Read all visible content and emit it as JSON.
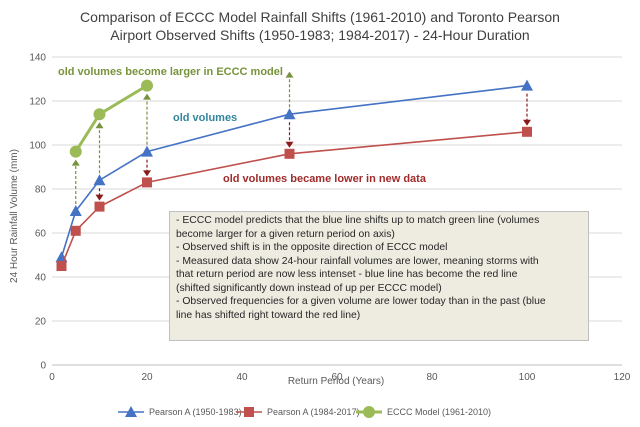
{
  "chart_data": {
    "type": "line",
    "title": [
      "Comparison of ECCC Model Rainfall Shifts (1961-2010) and Toronto Pearson",
      "Airport Observed Shifts (1950-1983; 1984-2017) - 24-Hour Duration"
    ],
    "xlabel": "Return Period (Years)",
    "ylabel": "24 Hour Rainfall Volume (mm)",
    "xlim": [
      0,
      120
    ],
    "ylim": [
      0,
      140
    ],
    "xticks": [
      0,
      20,
      40,
      60,
      80,
      100,
      120
    ],
    "yticks": [
      0,
      20,
      40,
      60,
      80,
      100,
      120,
      140
    ],
    "grid": "horizontal",
    "legend": "bottom",
    "series": [
      {
        "name": "Pearson A (1950-1983)",
        "color": "#4472c4",
        "marker": "triangle",
        "x": [
          2,
          5,
          10,
          20,
          50,
          100
        ],
        "y": [
          49,
          70,
          84,
          97,
          114,
          127
        ]
      },
      {
        "name": "Pearson A (1984-2017)",
        "color": "#c0504d",
        "marker": "square",
        "x": [
          2,
          5,
          10,
          20,
          50,
          100
        ],
        "y": [
          45,
          61,
          72,
          83,
          96,
          106
        ]
      },
      {
        "name": "ECCC Model (1961-2010)",
        "color": "#9bbb59",
        "marker": "circle",
        "x": [
          5,
          10,
          20
        ],
        "y": [
          97,
          114,
          127
        ]
      }
    ],
    "annotations": [
      {
        "text": "old volumes become larger in ECCC model",
        "color": "#77933c"
      },
      {
        "text": "old volumes",
        "color": "#31859c"
      },
      {
        "text": "old volumes became lower in new data",
        "color": "#a02b2b"
      }
    ],
    "up_arrows": [
      {
        "x": 5,
        "from": 70,
        "to": 97
      },
      {
        "x": 10,
        "from": 84,
        "to": 114
      },
      {
        "x": 20,
        "from": 97,
        "to": 127
      },
      {
        "x": 50,
        "from": 114,
        "to": 137
      }
    ],
    "down_arrows": [
      {
        "x": 10,
        "from": 84,
        "to": 72
      },
      {
        "x": 20,
        "from": 97,
        "to": 83
      },
      {
        "x": 50,
        "from": 114,
        "to": 96
      },
      {
        "x": 100,
        "from": 127,
        "to": 106
      }
    ],
    "arrow_colors": {
      "up": "#77933c",
      "down": "#8b1a1a"
    }
  },
  "note_lines": [
    "- ECCC model predicts that the blue line shifts up to match green line (volumes",
    "become larger for a given return period on axis)",
    "- Observed shift is in the opposite direction of ECCC model",
    "- Measured data show 24-hour rainfall volumes are lower, meaning storms with",
    "that return period are now less intenset - blue line has become the red line",
    "(shifted significantly down instead of up per ECCC model)",
    "- Observed frequencies for a given volume are lower today than in the past (blue",
    "line has shifted right toward the red line)"
  ]
}
